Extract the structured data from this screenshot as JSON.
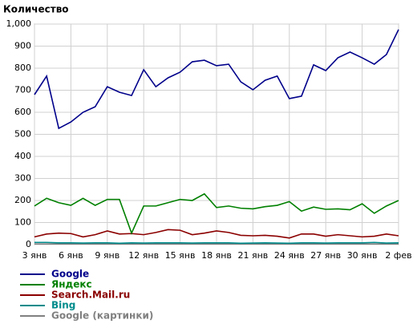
{
  "chart_data": {
    "type": "line",
    "title": "Количество",
    "categories": [
      "3 янв",
      null,
      null,
      "6 янв",
      null,
      null,
      "9 янв",
      null,
      null,
      "12 янв",
      null,
      null,
      "15 янв",
      null,
      null,
      "18 янв",
      null,
      null,
      "21 янв",
      null,
      null,
      "24 янв",
      null,
      null,
      "27 янв",
      null,
      null,
      "30 янв",
      null,
      null,
      "2 фев"
    ],
    "series": [
      {
        "name": "Google",
        "color": "#00008b",
        "values": [
          680,
          764,
          527,
          556,
          600,
          625,
          716,
          691,
          676,
          793,
          716,
          756,
          782,
          829,
          836,
          811,
          818,
          738,
          702,
          745,
          764,
          662,
          673,
          815,
          789,
          847,
          873,
          847,
          818,
          862,
          975
        ]
      },
      {
        "name": "Яндекс",
        "color": "#008000",
        "values": [
          175,
          210,
          190,
          178,
          210,
          178,
          205,
          205,
          52,
          175,
          175,
          190,
          205,
          200,
          230,
          168,
          175,
          165,
          162,
          172,
          178,
          195,
          152,
          170,
          160,
          162,
          158,
          185,
          142,
          175,
          200
        ]
      },
      {
        "name": "Search.Mail.ru",
        "color": "#8b0000",
        "values": [
          35,
          48,
          52,
          50,
          35,
          45,
          62,
          48,
          50,
          45,
          55,
          68,
          65,
          45,
          52,
          62,
          55,
          42,
          40,
          42,
          38,
          30,
          48,
          48,
          38,
          45,
          40,
          35,
          38,
          48,
          40
        ]
      },
      {
        "name": "Bing",
        "color": "#008b8b",
        "values": [
          10,
          10,
          8,
          8,
          7,
          8,
          8,
          6,
          8,
          7,
          8,
          8,
          8,
          7,
          8,
          8,
          8,
          6,
          7,
          8,
          7,
          6,
          8,
          8,
          7,
          8,
          8,
          8,
          10,
          7,
          8
        ]
      },
      {
        "name": "Google (картинки)",
        "color": "#808080",
        "values": [
          3,
          3,
          3,
          3,
          3,
          3,
          3,
          3,
          3,
          3,
          3,
          3,
          3,
          3,
          3,
          3,
          3,
          3,
          3,
          3,
          3,
          3,
          3,
          3,
          3,
          3,
          3,
          3,
          3,
          3,
          3
        ]
      }
    ],
    "ylim": [
      0,
      1000
    ],
    "yticks": [
      0,
      100,
      200,
      300,
      400,
      500,
      600,
      700,
      800,
      900,
      {
        "value": 1000,
        "label": "1,000"
      }
    ],
    "grid": true
  }
}
